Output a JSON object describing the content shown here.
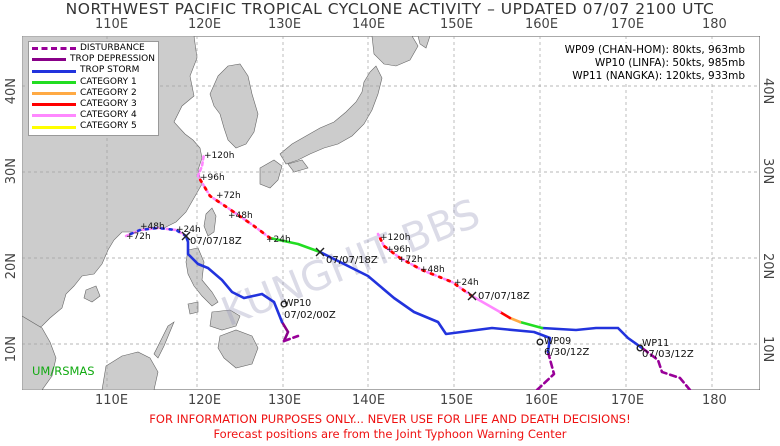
{
  "title": "NORTHWEST PACIFIC TROPICAL CYCLONE ACTIVITY – UPDATED 07/07 2100 UTC",
  "lon_labels": [
    "110E",
    "120E",
    "130E",
    "140E",
    "150E",
    "160E",
    "170E",
    "180"
  ],
  "lat_labels": [
    "40N",
    "30N",
    "20N",
    "10N"
  ],
  "legend": [
    {
      "label": "DISTURBANCE",
      "color": "#990099",
      "style": "dashed"
    },
    {
      "label": "TROP DEPRESSION",
      "color": "#880088",
      "style": "solid"
    },
    {
      "label": "TROP STORM",
      "color": "#2233dd",
      "style": "solid"
    },
    {
      "label": "CATEGORY 1",
      "color": "#22dd22",
      "style": "solid"
    },
    {
      "label": "CATEGORY 2",
      "color": "#ffaa44",
      "style": "solid"
    },
    {
      "label": "CATEGORY 3",
      "color": "#ff0000",
      "style": "solid"
    },
    {
      "label": "CATEGORY 4",
      "color": "#ff88ff",
      "style": "solid"
    },
    {
      "label": "CATEGORY 5",
      "color": "#ffff00",
      "style": "solid"
    }
  ],
  "storms": [
    "WP09 (CHAN-HOM): 80kts, 963mb",
    "WP10 (LINFA): 50kts, 985mb",
    "WP11 (NANGKA): 120kts, 933mb"
  ],
  "track_labels": {
    "wp09_fc": [
      "+120h",
      "+96h",
      "+72h",
      "+48h",
      "+24h"
    ],
    "wp09_now": "07/07/18Z",
    "wp09_start": "6/30/12Z",
    "wp09_id": "WP09",
    "wp10_fc": [
      "+48h",
      "+72h",
      "+24h"
    ],
    "wp10_now": "07/07/18Z",
    "wp10_id": "WP10",
    "wp10_start": "07/02/00Z",
    "wp11_fc": [
      "+120h",
      "+96h",
      "+72h",
      "+48h",
      "+24h"
    ],
    "wp11_now": "07/07/18Z",
    "wp11_id": "WP11",
    "wp11_start": "07/03/12Z"
  },
  "watermark": "KUNGHIT BBS",
  "credit": "UM/RSMAS",
  "footer_warning": "FOR INFORMATION PURPOSES ONLY... NEVER USE FOR LIFE AND DEATH DECISIONS!",
  "footer_source": "Forecast positions are from the Joint Typhoon Warning Center"
}
